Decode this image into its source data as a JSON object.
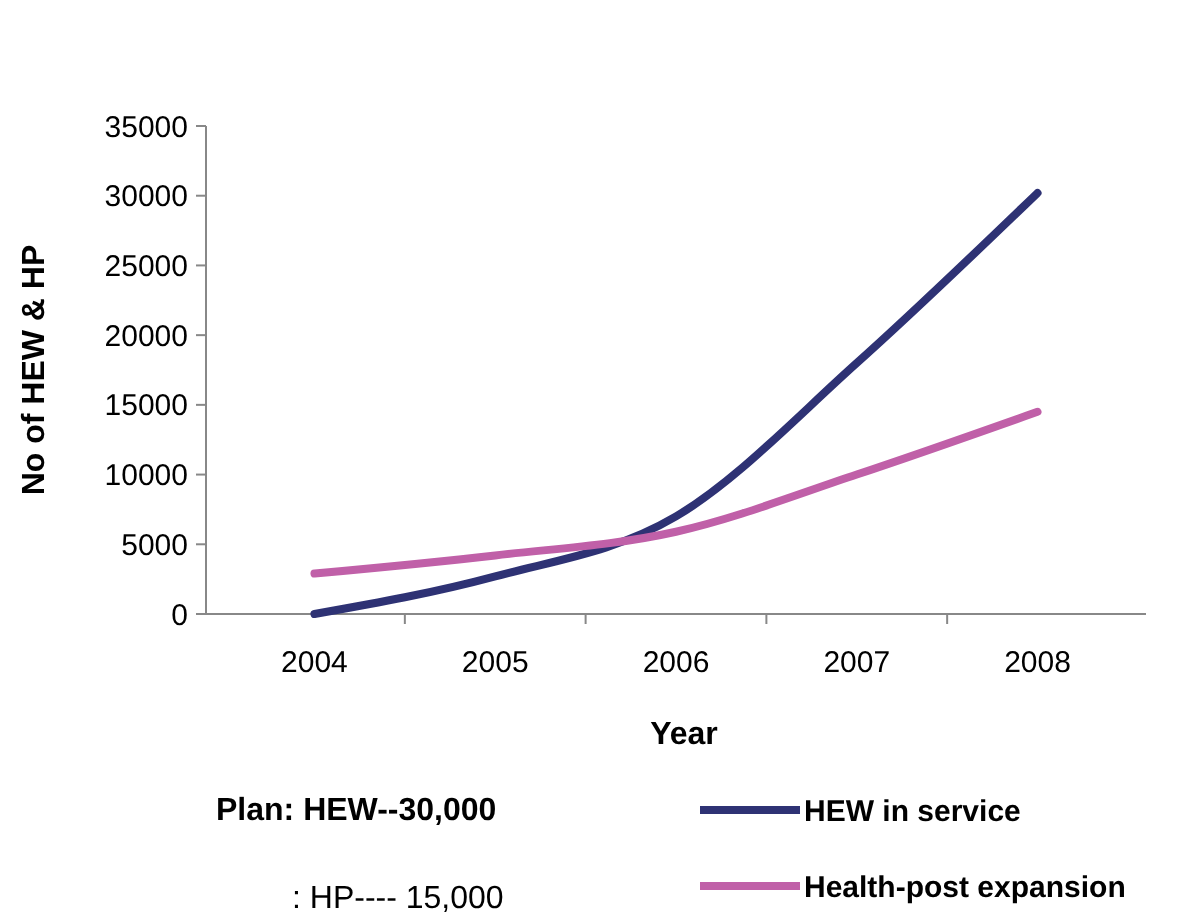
{
  "chart_data": {
    "type": "line",
    "xlabel": "Year",
    "ylabel": "No of HEW & HP",
    "categories": [
      "2004",
      "2005",
      "2006",
      "2007",
      "2008"
    ],
    "series": [
      {
        "name": "HEW in service",
        "color": "#2e3274",
        "values": [
          0,
          2700,
          7000,
          18000,
          30200
        ]
      },
      {
        "name": "Health-post expansion",
        "color": "#c060a8",
        "values": [
          2900,
          4200,
          5900,
          10000,
          14500
        ]
      }
    ],
    "ylim": [
      0,
      35000
    ],
    "yticks": [
      0,
      5000,
      10000,
      15000,
      20000,
      25000,
      30000,
      35000
    ],
    "grid": false,
    "legend": "bottom right",
    "marker": "none",
    "line_style": "solid",
    "annotations": [
      "Plan: HEW--30,000",
      ": HP---- 15,000"
    ]
  }
}
